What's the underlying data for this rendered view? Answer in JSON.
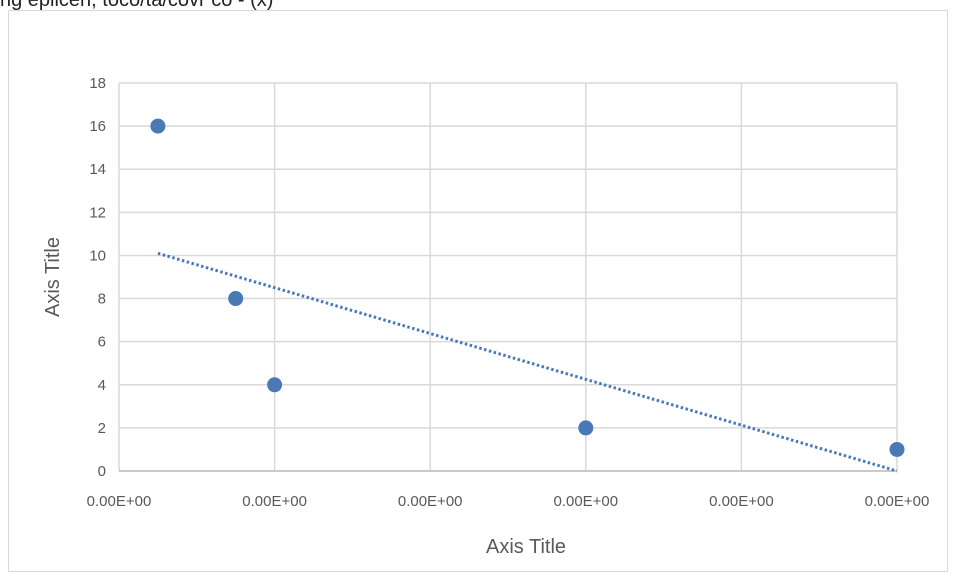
{
  "caption": "ng eplicen, toco/ta/covr co - (x)",
  "chart_data": {
    "type": "scatter",
    "xlabel": "Axis Title",
    "ylabel": "Axis Title",
    "x_tick_labels": [
      "0.00E+00",
      "0.00E+00",
      "0.00E+00",
      "0.00E+00",
      "0.00E+00",
      "0.00E+00"
    ],
    "y_ticks": [
      0,
      2,
      4,
      6,
      8,
      10,
      12,
      14,
      16,
      18
    ],
    "ylim": [
      0,
      18
    ],
    "grid": true,
    "series": [
      {
        "color": "#4a7ab5",
        "points": [
          {
            "x_index": 0.25,
            "y": 16
          },
          {
            "x_index": 0.75,
            "y": 8
          },
          {
            "x_index": 1.0,
            "y": 4
          },
          {
            "x_index": 3.0,
            "y": 2
          },
          {
            "x_index": 5.0,
            "y": 1
          }
        ]
      }
    ],
    "trendline": {
      "style": "dotted",
      "color": "#4a7ab5",
      "start": {
        "x_index": 0.25,
        "y": 10.1
      },
      "end": {
        "x_index": 5.0,
        "y": 0.0
      }
    }
  }
}
